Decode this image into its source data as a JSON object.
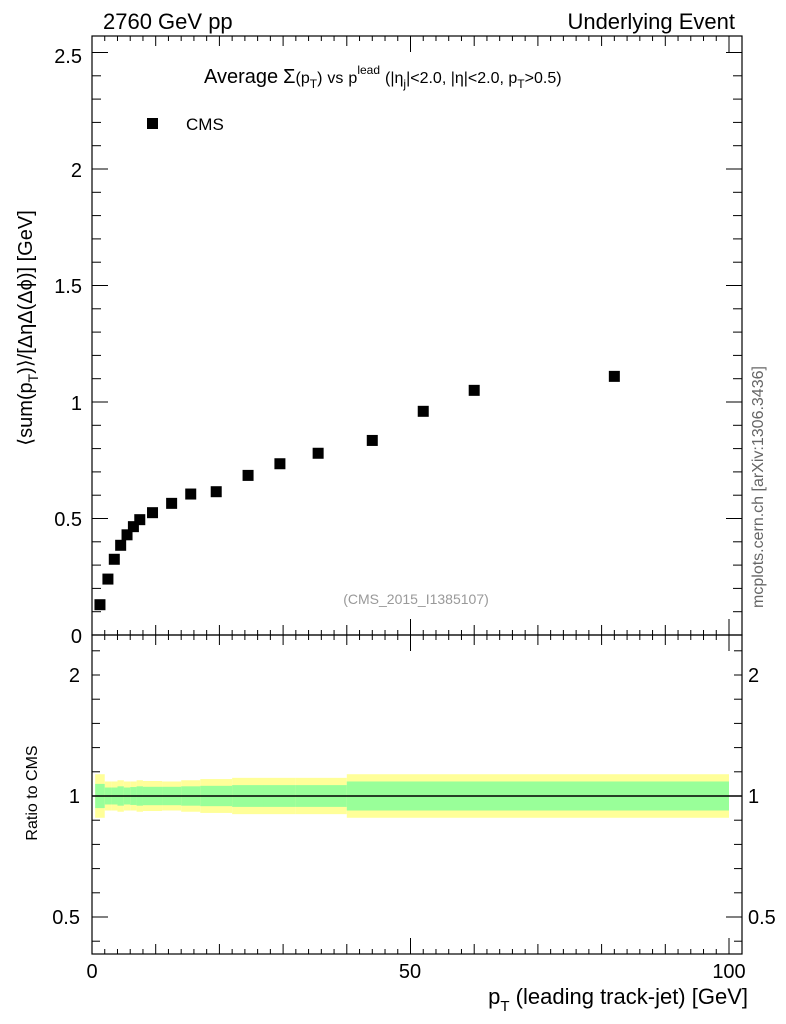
{
  "header": {
    "left": "2760 GeV pp",
    "right": "Underlying Event"
  },
  "watermark": "mcplots.cern.ch [arXiv:1306.3436]",
  "analysis_id": "(CMS_2015_I1385107)",
  "chart_data": [
    {
      "panel": "main",
      "type": "scatter",
      "title": "Average Σ(pT) vs pT^lead (|ηj|<2.0, |η|<2.0, pT>0.5)",
      "title_parts": {
        "average": "Average",
        "sigma": "Σ",
        "paren_open": "(p",
        "sub_T": "T",
        "paren_close": ")",
        "vs": "vs",
        "p": "p",
        "sup_lead": "lead",
        "cond_open": "(|η",
        "sub_j": "j",
        "cond_mid": "|<2.0, |η|<2.0, p",
        "cond_end": ">0.5)"
      },
      "ylabel": "⟨sum(pT)⟩/[ΔηΔ(Δϕ)] [GeV]",
      "ylabel_parts": {
        "pre": "⟨sum(p",
        "sub": "T",
        "post": ")⟩/[ΔηΔ(Δϕ)] [GeV]"
      },
      "xlim": [
        0,
        100
      ],
      "ylim": [
        0,
        2.6
      ],
      "yticks": [
        "0",
        "0.5",
        "1",
        "1.5",
        "2",
        "2.5"
      ],
      "legend": {
        "position": "top-left",
        "label": "CMS"
      },
      "series": [
        {
          "name": "CMS",
          "color": "#000000",
          "x": [
            1.25,
            2.5,
            3.5,
            4.5,
            5.5,
            6.5,
            7.5,
            9.5,
            12.5,
            15.5,
            19.5,
            24.5,
            29.5,
            35.5,
            44.0,
            52.0,
            60.0,
            82.0
          ],
          "y": [
            0.13,
            0.24,
            0.325,
            0.385,
            0.43,
            0.465,
            0.495,
            0.525,
            0.565,
            0.605,
            0.615,
            0.685,
            0.735,
            0.78,
            0.835,
            0.96,
            1.05,
            1.11
          ]
        }
      ]
    },
    {
      "panel": "ratio",
      "type": "area",
      "ylabel": "Ratio to CMS",
      "xlabel": "pT (leading track-jet) [GeV]",
      "xlabel_parts": {
        "pre": "p",
        "sub": "T",
        "post": " (leading track-jet) [GeV]"
      },
      "xlim": [
        0,
        100
      ],
      "ylim": [
        0.35,
        2.3
      ],
      "xticks": [
        "0",
        "50",
        "100"
      ],
      "yticks": [
        "0.5",
        "1",
        "2"
      ],
      "reference_line": 1.0,
      "bands": {
        "edges": [
          0.5,
          2.0,
          3.0,
          4.0,
          5.0,
          6.0,
          7.0,
          8.0,
          11.0,
          14.0,
          17.0,
          22.0,
          27.0,
          32.0,
          40.0,
          100.0
        ],
        "stat": {
          "color": "#99ff99",
          "lo": [
            0.95,
            0.965,
            0.965,
            0.96,
            0.965,
            0.963,
            0.96,
            0.962,
            0.962,
            0.96,
            0.958,
            0.955,
            0.955,
            0.955,
            0.94
          ],
          "hi": [
            1.05,
            1.035,
            1.035,
            1.04,
            1.035,
            1.037,
            1.04,
            1.038,
            1.038,
            1.04,
            1.042,
            1.045,
            1.045,
            1.045,
            1.06
          ]
        },
        "total": {
          "color": "#ffff99",
          "lo": [
            0.91,
            0.94,
            0.94,
            0.935,
            0.94,
            0.94,
            0.935,
            0.938,
            0.94,
            0.935,
            0.93,
            0.925,
            0.925,
            0.925,
            0.91
          ],
          "hi": [
            1.09,
            1.06,
            1.06,
            1.065,
            1.06,
            1.06,
            1.065,
            1.062,
            1.06,
            1.065,
            1.07,
            1.075,
            1.075,
            1.075,
            1.09
          ]
        }
      }
    }
  ]
}
